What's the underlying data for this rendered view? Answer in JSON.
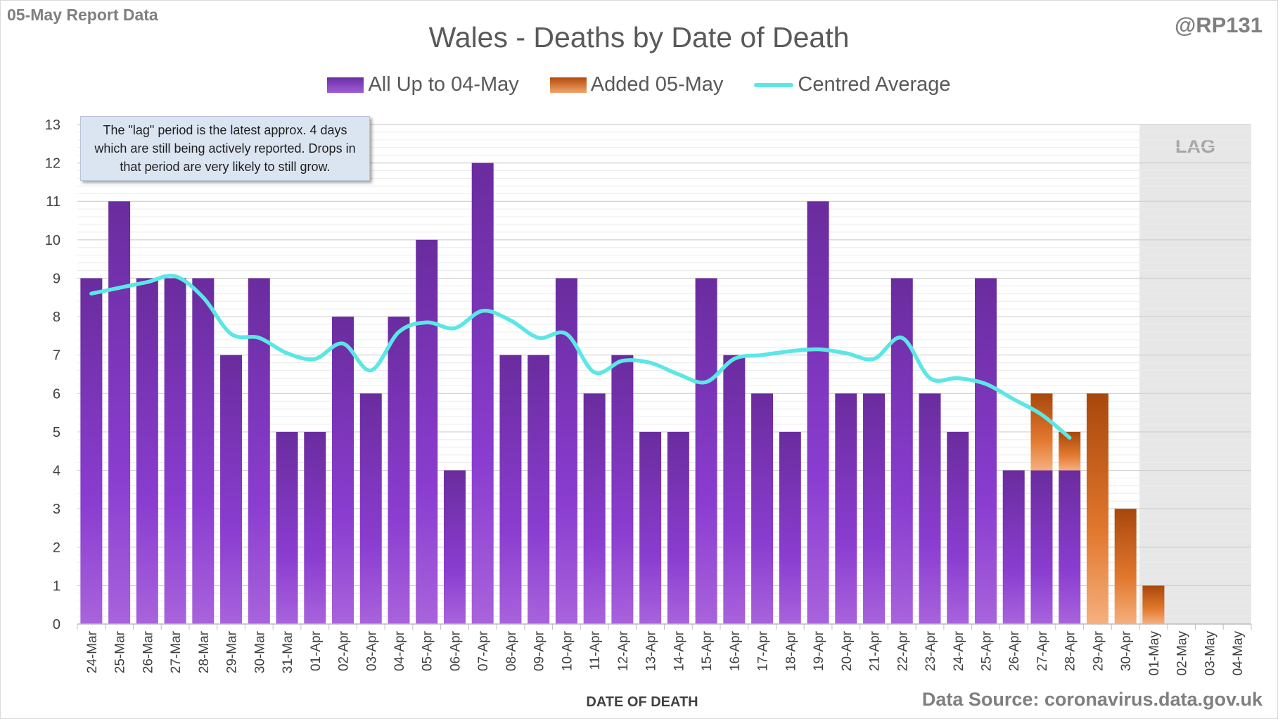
{
  "report_label": "05-May Report Data",
  "handle": "@RP131",
  "source": "Data Source: coronavirus.data.gov.uk",
  "note": "The \"lag\" period is the latest approx. 4 days which are still being actively reported.  Drops in that period are very likely to still grow.",
  "colors": {
    "purple": "#7030a0",
    "orange": "#c55a11",
    "average": "#5ce6e6",
    "lag_shade": "#e7e7e7",
    "grid": "#d9d9d9"
  },
  "chart_data": {
    "type": "bar",
    "title": "Wales - Deaths by Date of Death",
    "xlabel": "DATE OF DEATH",
    "ylabel": "",
    "ylim": [
      0,
      13
    ],
    "yticks": [
      0,
      1,
      2,
      3,
      4,
      5,
      6,
      7,
      8,
      9,
      10,
      11,
      12,
      13
    ],
    "lag_label": "LAG",
    "lag_categories": [
      "01-May",
      "02-May",
      "03-May",
      "04-May"
    ],
    "categories": [
      "24-Mar",
      "25-Mar",
      "26-Mar",
      "27-Mar",
      "28-Mar",
      "29-Mar",
      "30-Mar",
      "31-Mar",
      "01-Apr",
      "02-Apr",
      "03-Apr",
      "04-Apr",
      "05-Apr",
      "06-Apr",
      "07-Apr",
      "08-Apr",
      "09-Apr",
      "10-Apr",
      "11-Apr",
      "12-Apr",
      "13-Apr",
      "14-Apr",
      "15-Apr",
      "16-Apr",
      "17-Apr",
      "18-Apr",
      "19-Apr",
      "20-Apr",
      "21-Apr",
      "22-Apr",
      "23-Apr",
      "24-Apr",
      "25-Apr",
      "26-Apr",
      "27-Apr",
      "28-Apr",
      "29-Apr",
      "30-Apr",
      "01-May",
      "02-May",
      "03-May",
      "04-May"
    ],
    "series": [
      {
        "name": "All Up to 04-May",
        "stack": "main",
        "values": [
          9,
          11,
          9,
          9,
          9,
          7,
          9,
          5,
          5,
          8,
          6,
          8,
          10,
          4,
          12,
          7,
          7,
          9,
          6,
          7,
          5,
          5,
          9,
          7,
          6,
          5,
          11,
          6,
          6,
          9,
          6,
          5,
          9,
          4,
          4,
          4,
          0,
          0,
          0,
          0,
          0,
          0
        ]
      },
      {
        "name": "Added 05-May",
        "stack": "main",
        "values": [
          0,
          0,
          0,
          0,
          0,
          0,
          0,
          0,
          0,
          0,
          0,
          0,
          0,
          0,
          0,
          0,
          0,
          0,
          0,
          0,
          0,
          0,
          0,
          0,
          0,
          0,
          0,
          0,
          0,
          0,
          0,
          0,
          0,
          0,
          2,
          1,
          6,
          3,
          1,
          0,
          0,
          0
        ]
      },
      {
        "name": "Centred Average",
        "type": "line",
        "values": [
          8.6,
          8.75,
          8.9,
          9.05,
          8.5,
          7.55,
          7.45,
          7.05,
          6.9,
          7.3,
          6.6,
          7.6,
          7.85,
          7.7,
          8.15,
          7.9,
          7.45,
          7.55,
          6.55,
          6.85,
          6.8,
          6.5,
          6.3,
          6.9,
          7.0,
          7.1,
          7.15,
          7.05,
          6.9,
          7.45,
          6.4,
          6.4,
          6.25,
          5.85,
          5.45,
          4.85,
          null,
          null,
          null,
          null,
          null,
          null
        ]
      }
    ],
    "legend": {
      "position": "top"
    },
    "grid": true
  }
}
